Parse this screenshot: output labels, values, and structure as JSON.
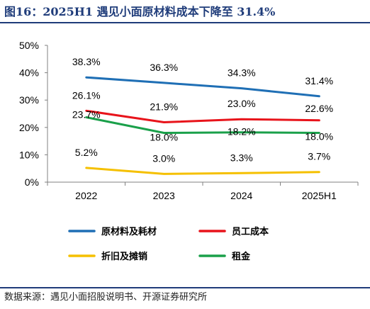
{
  "header": {
    "title": "图16：2025H1 遇见小面原材料成本下降至 31.4%"
  },
  "footer": {
    "source": "数据来源：遇见小面招股说明书、开源证券研究所"
  },
  "chart_data": {
    "type": "line",
    "title": "图16：2025H1 遇见小面原材料成本下降至 31.4%",
    "xlabel": "",
    "ylabel": "",
    "x": [
      "2022",
      "2023",
      "2024",
      "2025H1"
    ],
    "ylim": [
      0,
      50
    ],
    "yticks": [
      "0%",
      "10%",
      "20%",
      "30%",
      "40%",
      "50%"
    ],
    "grid": false,
    "legend_position": "bottom",
    "series": [
      {
        "name": "原材料及耗材",
        "color": "#1f6fb5",
        "values": [
          38.3,
          36.3,
          34.3,
          31.4
        ],
        "labels": [
          "38.3%",
          "36.3%",
          "34.3%",
          "31.4%"
        ]
      },
      {
        "name": "员工成本",
        "color": "#e8141b",
        "values": [
          26.1,
          21.9,
          23.0,
          22.6
        ],
        "labels": [
          "26.1%",
          "21.9%",
          "23.0%",
          "22.6%"
        ]
      },
      {
        "name": "折旧及摊销",
        "color": "#f5c000",
        "values": [
          5.2,
          3.0,
          3.3,
          3.7
        ],
        "labels": [
          "5.2%",
          "3.0%",
          "3.3%",
          "3.7%"
        ]
      },
      {
        "name": "租金",
        "color": "#1aa04a",
        "values": [
          23.7,
          18.0,
          18.2,
          18.0
        ],
        "labels": [
          "23.7%",
          "18.0%",
          "18.2%",
          "18.0%"
        ]
      }
    ]
  }
}
